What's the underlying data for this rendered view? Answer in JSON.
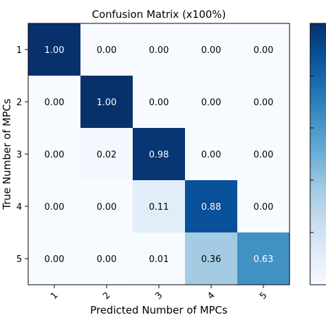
{
  "chart_data": {
    "type": "heatmap",
    "title": "Confusion Matrix (x100%)",
    "xlabel": "Predicted Number of MPCs",
    "ylabel": "True Number of MPCs",
    "x_categories": [
      "1",
      "2",
      "3",
      "4",
      "5"
    ],
    "y_categories": [
      "1",
      "2",
      "3",
      "4",
      "5"
    ],
    "values": [
      [
        1.0,
        0.0,
        0.0,
        0.0,
        0.0
      ],
      [
        0.0,
        1.0,
        0.0,
        0.0,
        0.0
      ],
      [
        0.0,
        0.02,
        0.98,
        0.0,
        0.0
      ],
      [
        0.0,
        0.0,
        0.11,
        0.88,
        0.0
      ],
      [
        0.0,
        0.0,
        0.01,
        0.36,
        0.63
      ]
    ],
    "value_labels": [
      [
        "1.00",
        "0.00",
        "0.00",
        "0.00",
        "0.00"
      ],
      [
        "0.00",
        "1.00",
        "0.00",
        "0.00",
        "0.00"
      ],
      [
        "0.00",
        "0.02",
        "0.98",
        "0.00",
        "0.00"
      ],
      [
        "0.00",
        "0.00",
        "0.11",
        "0.88",
        "0.00"
      ],
      [
        "0.00",
        "0.00",
        "0.01",
        "0.36",
        "0.63"
      ]
    ],
    "colormap": "Blues",
    "value_range": [
      0,
      1
    ],
    "colorbar": true,
    "grid": false
  }
}
